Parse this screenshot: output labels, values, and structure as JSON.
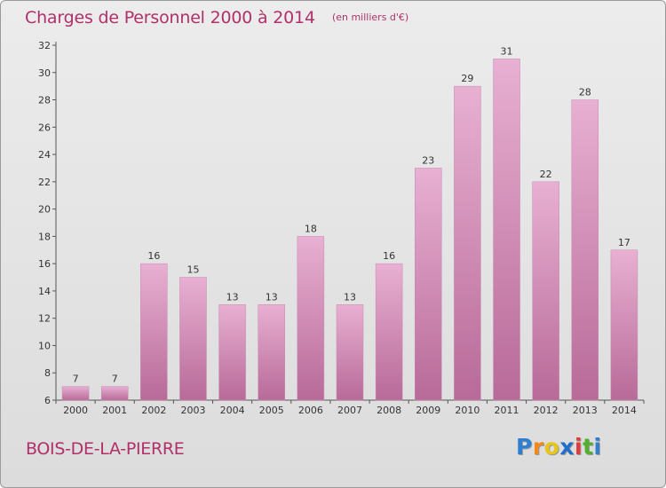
{
  "title": "Charges de Personnel 2000 à 2014",
  "unit_note": "(en milliers d'€)",
  "commune": "BOIS-DE-LA-PIERRE",
  "logo": {
    "letters": [
      "P",
      "r",
      "o",
      "x",
      "i",
      "t",
      "i"
    ],
    "colors": [
      "#2f7fd0",
      "#f08a1c",
      "#e8c51a",
      "#1f6fc8",
      "#e03a3a",
      "#52b02e",
      "#2f7fd0"
    ]
  },
  "colors": {
    "bar": "#d884b8",
    "bar_light": "#e8b0d2",
    "bar_dark": "#b86a98",
    "accent": "#b0306a"
  },
  "chart_data": {
    "type": "bar",
    "categories": [
      "2000",
      "2001",
      "2002",
      "2003",
      "2004",
      "2005",
      "2006",
      "2007",
      "2008",
      "2009",
      "2010",
      "2011",
      "2012",
      "2013",
      "2014"
    ],
    "values": [
      7,
      7,
      16,
      15,
      13,
      13,
      18,
      13,
      16,
      23,
      29,
      31,
      22,
      28,
      17
    ],
    "ylim": [
      6,
      32
    ],
    "yticks": [
      6,
      8,
      10,
      12,
      14,
      16,
      18,
      20,
      22,
      24,
      26,
      28,
      30,
      32
    ],
    "grid": false,
    "data_labels": true
  }
}
